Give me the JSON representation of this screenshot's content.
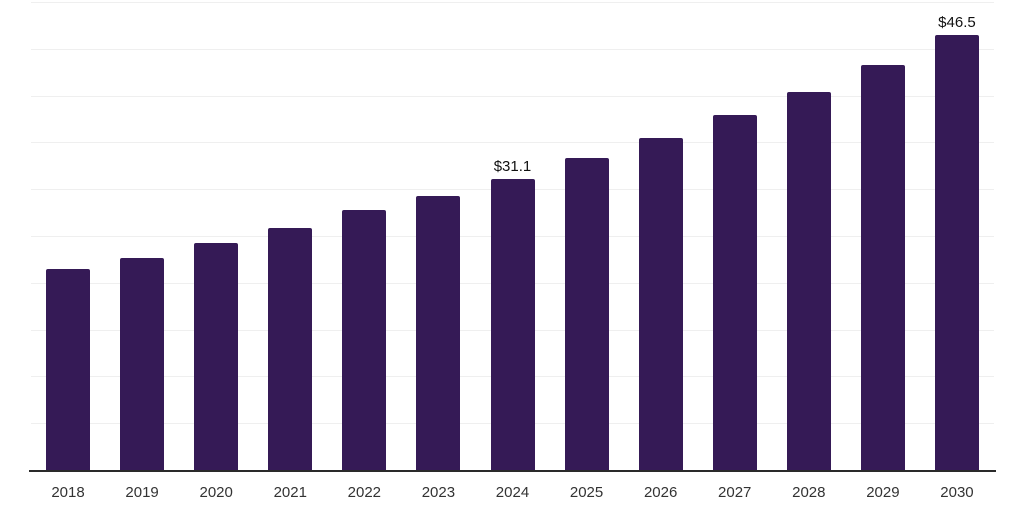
{
  "chart_data": {
    "type": "bar",
    "categories": [
      "2018",
      "2019",
      "2020",
      "2021",
      "2022",
      "2023",
      "2024",
      "2025",
      "2026",
      "2027",
      "2028",
      "2029",
      "2030"
    ],
    "values": [
      21.5,
      22.7,
      24.3,
      25.9,
      27.8,
      29.3,
      31.1,
      33.3,
      35.5,
      37.9,
      40.4,
      43.3,
      46.5
    ],
    "data_labels": [
      "",
      "",
      "",
      "",
      "",
      "",
      "$31.1",
      "",
      "",
      "",
      "",
      "",
      "$46.5"
    ],
    "ylim": [
      0,
      50
    ],
    "grid_step": 5,
    "grid": true,
    "legend": false,
    "colors": {
      "bar": "#351a56",
      "gridline": "#efefef",
      "axis_line": "#2a2a2a",
      "tick_label": "#333333",
      "data_label": "#111111",
      "background": "#ffffff"
    }
  }
}
